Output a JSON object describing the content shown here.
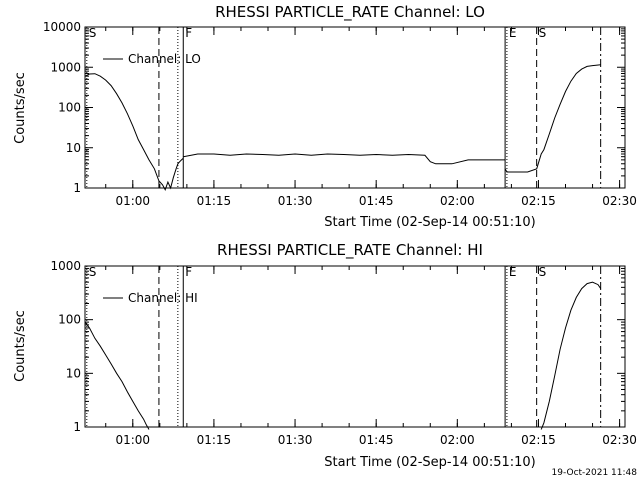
{
  "timestamp": "19-Oct-2021 11:48",
  "chart_data": [
    {
      "type": "line",
      "title": "RHESSI PARTICLE_RATE Channel: LO",
      "xlabel": "Start Time (02-Sep-14 00:51:10)",
      "ylabel": "Counts/sec",
      "y_scale": "log",
      "ylim": [
        1,
        10000
      ],
      "xlim": [
        "00:51:10",
        "02:31:00"
      ],
      "x_ticks": [
        "01:00",
        "01:15",
        "01:30",
        "01:45",
        "02:00",
        "02:15",
        "02:30"
      ],
      "y_ticks": [
        "1",
        "10",
        "100",
        "1000",
        "10000"
      ],
      "legend": {
        "position": "top-left",
        "label": "Channel: LO"
      },
      "markers": [
        {
          "label": "S",
          "time": "00:51:30",
          "style": "dotted"
        },
        {
          "label": "",
          "time": "01:04:50",
          "style": "dashed"
        },
        {
          "label": "",
          "time": "01:08:20",
          "style": "dotted"
        },
        {
          "label": "F",
          "time": "01:09:20",
          "style": "solid"
        },
        {
          "label": "",
          "time": "02:08:50",
          "style": "solid"
        },
        {
          "label": "E",
          "time": "02:09:10",
          "style": "dotted"
        },
        {
          "label": "S",
          "time": "02:14:40",
          "style": "dashed"
        },
        {
          "label": "",
          "time": "02:26:30",
          "style": "dashdot"
        }
      ],
      "series": [
        {
          "segments": [
            {
              "x": [
                "00:51:10",
                "00:52:00",
                "00:53:00",
                "00:54:00",
                "00:55:00",
                "00:56:00",
                "00:57:00",
                "00:58:00",
                "00:59:00",
                "01:00:00",
                "01:01:00",
                "01:02:00",
                "01:03:00",
                "01:04:00",
                "01:04:50",
                "01:05:30",
                "01:06:00",
                "01:06:30",
                "01:07:00",
                "01:07:30",
                "01:08:00",
                "01:08:20",
                "01:08:40",
                "01:09:00",
                "01:09:20"
              ],
              "y": [
                600,
                680,
                690,
                600,
                480,
                350,
                220,
                130,
                70,
                35,
                16,
                9,
                5,
                3,
                1.5,
                1.2,
                0.9,
                1.4,
                1.0,
                1.8,
                3,
                4,
                4.5,
                5,
                5.5
              ]
            },
            {
              "x": [
                "01:09:20",
                "01:12:00",
                "01:15:00",
                "01:18:00",
                "01:21:00",
                "01:24:00",
                "01:27:00",
                "01:30:00",
                "01:33:00",
                "01:36:00",
                "01:39:00",
                "01:42:00",
                "01:45:00",
                "01:48:00",
                "01:51:00",
                "01:54:00",
                "01:55:00",
                "01:56:00",
                "01:59:00",
                "02:02:00",
                "02:05:00",
                "02:08:50"
              ],
              "y": [
                6,
                7,
                7,
                6.5,
                7,
                6.8,
                6.5,
                7,
                6.5,
                7,
                6.8,
                6.5,
                6.8,
                6.5,
                6.8,
                6.5,
                4.5,
                4,
                4,
                5,
                5,
                5
              ]
            },
            {
              "x": [
                "02:08:50",
                "02:09:10",
                "02:11:00",
                "02:13:00",
                "02:14:40",
                "02:15:30",
                "02:16:00",
                "02:17:00",
                "02:18:00",
                "02:19:00",
                "02:20:00",
                "02:21:00",
                "02:22:00",
                "02:23:00",
                "02:24:00",
                "02:25:00",
                "02:26:30"
              ],
              "y": [
                3,
                2.5,
                2.5,
                2.5,
                3,
                7,
                9,
                22,
                55,
                120,
                250,
                450,
                700,
                900,
                1050,
                1100,
                1150
              ]
            }
          ]
        }
      ]
    },
    {
      "type": "line",
      "title": "RHESSI PARTICLE_RATE Channel: HI",
      "xlabel": "Start Time (02-Sep-14 00:51:10)",
      "ylabel": "Counts/sec",
      "y_scale": "log",
      "ylim": [
        1,
        1000
      ],
      "xlim": [
        "00:51:10",
        "02:31:00"
      ],
      "x_ticks": [
        "01:00",
        "01:15",
        "01:30",
        "01:45",
        "02:00",
        "02:15",
        "02:30"
      ],
      "y_ticks": [
        "1",
        "10",
        "100",
        "1000"
      ],
      "legend": {
        "position": "top-left",
        "label": "Channel: HI"
      },
      "markers": [
        {
          "label": "S",
          "time": "00:51:30",
          "style": "dotted"
        },
        {
          "label": "",
          "time": "01:04:50",
          "style": "dashed"
        },
        {
          "label": "",
          "time": "01:08:20",
          "style": "dotted"
        },
        {
          "label": "F",
          "time": "01:09:20",
          "style": "solid"
        },
        {
          "label": "",
          "time": "02:08:50",
          "style": "solid"
        },
        {
          "label": "E",
          "time": "02:09:10",
          "style": "dotted"
        },
        {
          "label": "S",
          "time": "02:14:40",
          "style": "dashed"
        },
        {
          "label": "",
          "time": "02:26:30",
          "style": "dashdot"
        }
      ],
      "series": [
        {
          "segments": [
            {
              "x": [
                "00:51:10",
                "00:52:00",
                "00:53:00",
                "00:54:00",
                "00:55:00",
                "00:56:00",
                "00:57:00",
                "00:58:00",
                "00:59:00",
                "01:00:00",
                "01:01:00",
                "01:02:00",
                "01:02:30",
                "01:03:00"
              ],
              "y": [
                90,
                70,
                45,
                32,
                22,
                15,
                10,
                7,
                4.5,
                3,
                2,
                1.4,
                1.1,
                0.9
              ]
            },
            {
              "x": [
                "02:15:30",
                "02:16:00",
                "02:17:00",
                "02:18:00",
                "02:19:00",
                "02:20:00",
                "02:21:00",
                "02:22:00",
                "02:23:00",
                "02:24:00",
                "02:25:00",
                "02:26:00",
                "02:26:30"
              ],
              "y": [
                0.9,
                1.2,
                3,
                9,
                28,
                70,
                150,
                260,
                380,
                470,
                500,
                450,
                380
              ]
            }
          ]
        }
      ]
    }
  ]
}
